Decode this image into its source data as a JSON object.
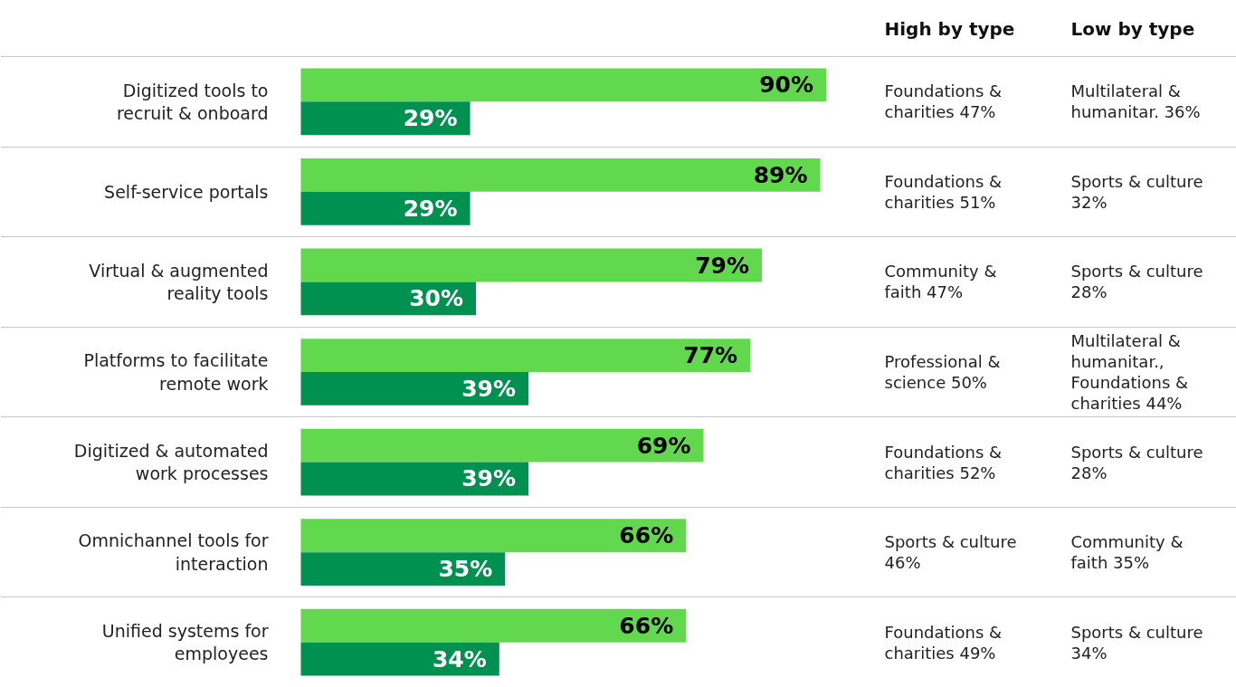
{
  "chart_data": {
    "type": "bar",
    "orientation": "horizontal",
    "grid": "y",
    "tick_labels": "y",
    "categories": [
      "Digitized tools to recruit & onboard",
      "Self-service portals",
      "Virtual & augmented reality tools",
      "Platforms to facilitate remote work",
      "Digitized & automated work processes",
      "Omnichannel tools for interaction",
      "Unified systems for employees"
    ],
    "series": [
      {
        "color": "#62d84e",
        "values": [
          90,
          89,
          79,
          77,
          69,
          66,
          66
        ],
        "value_labels": [
          "90%",
          "89%",
          "79%",
          "77%",
          "69%",
          "66%",
          "66%"
        ]
      },
      {
        "color": "#009150",
        "values": [
          29,
          29,
          30,
          39,
          39,
          35,
          34
        ],
        "value_labels": [
          "29%",
          "29%",
          "30%",
          "39%",
          "39%",
          "35%",
          "34%"
        ]
      }
    ],
    "annotations": [
      "High by type",
      "Low by type",
      "Foundations & charities 47%",
      "Multilateral & humanitar. 36%",
      "Foundations & charities 51%",
      "Sports & culture 32%",
      "Community & faith 47%",
      "Sports & culture 28%",
      "Professional & science 50%",
      "Multilateral & humanitar., Foundations & charities 44%",
      "Foundations & charities  52%",
      "Sports & culture 28%",
      "Sports & culture 46%",
      "Community & faith 35%",
      "Foundations & charities 49%",
      "Sports & culture 34%"
    ]
  }
}
